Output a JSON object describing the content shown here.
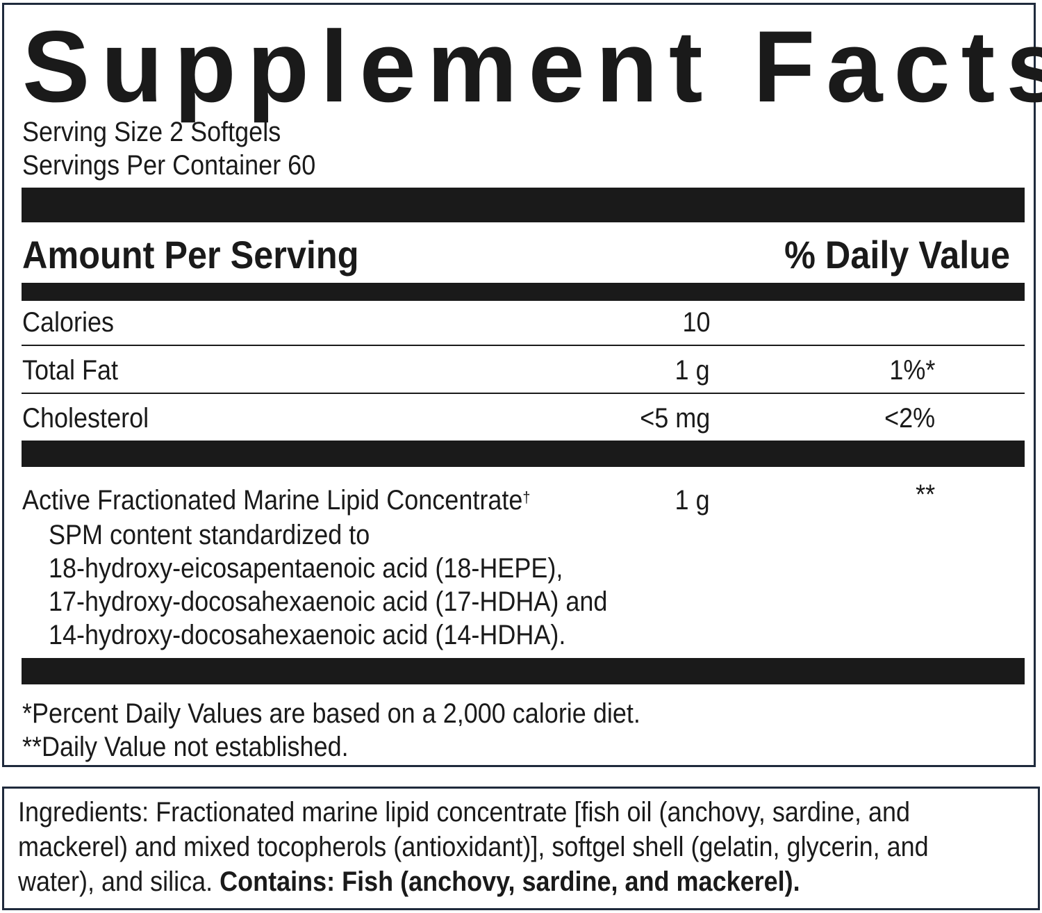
{
  "label": {
    "title": "Supplement Facts",
    "serving_size": "Serving Size 2 Softgels",
    "servings_per_container": "Servings Per Container 60",
    "header_amount": "Amount Per Serving",
    "header_daily_value": "% Daily Value",
    "rows": [
      {
        "name": "Calories",
        "amount": "10",
        "dv": ""
      },
      {
        "name": "Total Fat",
        "amount": "1 g",
        "dv": "1%*"
      },
      {
        "name": "Cholesterol",
        "amount": "<5 mg",
        "dv": "<2%"
      }
    ],
    "active": {
      "name": "Active Fractionated Marine Lipid Concentrate",
      "dagger": "†",
      "amount": "1 g",
      "dv": "**",
      "details": [
        "SPM content standardized to",
        "18-hydroxy-eicosapentaenoic acid (18-HEPE),",
        "17-hydroxy-docosahexaenoic acid (17-HDHA) and",
        "14-hydroxy-docosahexaenoic acid (14-HDHA)."
      ]
    },
    "footnotes": [
      "*Percent Daily Values are based on a 2,000 calorie diet.",
      "**Daily Value not established."
    ]
  },
  "ingredients": {
    "line1": "Ingredients: Fractionated marine lipid concentrate [fish oil (anchovy, sardine, and",
    "line2": "mackerel) and mixed tocopherols (antioxidant)], softgel shell (gelatin, glycerin, and",
    "line3_plain": "water), and silica. ",
    "line3_bold": "Contains: Fish (anchovy, sardine, and mackerel)."
  }
}
